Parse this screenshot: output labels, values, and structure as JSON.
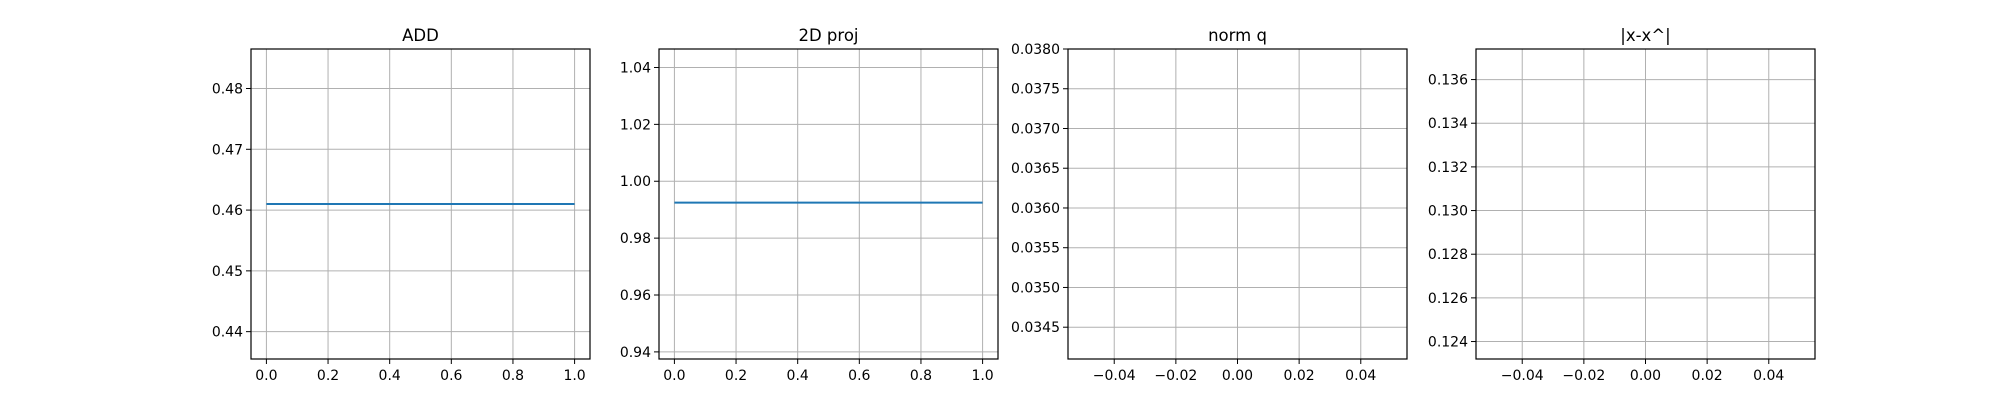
{
  "chart_data": [
    {
      "type": "line",
      "title": "ADD",
      "xlim": [
        -0.05,
        1.05
      ],
      "ylim": [
        0.4355,
        0.4865
      ],
      "x_ticks": [
        0.0,
        0.2,
        0.4,
        0.6,
        0.8,
        1.0
      ],
      "x_tick_labels": [
        "0.0",
        "0.2",
        "0.4",
        "0.6",
        "0.8",
        "1.0"
      ],
      "y_ticks": [
        0.44,
        0.45,
        0.46,
        0.47,
        0.48
      ],
      "y_tick_labels": [
        "0.44",
        "0.45",
        "0.46",
        "0.47",
        "0.48"
      ],
      "grid": true,
      "series": [
        {
          "x": [
            0.0,
            1.0
          ],
          "y": [
            0.461,
            0.461
          ],
          "color": "#1f77b4"
        }
      ]
    },
    {
      "type": "line",
      "title": "2D proj",
      "xlim": [
        -0.05,
        1.05
      ],
      "ylim": [
        0.9375,
        1.0465
      ],
      "x_ticks": [
        0.0,
        0.2,
        0.4,
        0.6,
        0.8,
        1.0
      ],
      "x_tick_labels": [
        "0.0",
        "0.2",
        "0.4",
        "0.6",
        "0.8",
        "1.0"
      ],
      "y_ticks": [
        0.94,
        0.96,
        0.98,
        1.0,
        1.02,
        1.04
      ],
      "y_tick_labels": [
        "0.94",
        "0.96",
        "0.98",
        "1.00",
        "1.02",
        "1.04"
      ],
      "grid": true,
      "series": [
        {
          "x": [
            0.0,
            1.0
          ],
          "y": [
            0.9925,
            0.9925
          ],
          "color": "#1f77b4"
        }
      ]
    },
    {
      "type": "line",
      "title": "norm q",
      "xlim": [
        -0.055,
        0.055
      ],
      "ylim": [
        0.0341,
        0.038
      ],
      "x_ticks": [
        -0.04,
        -0.02,
        0.0,
        0.02,
        0.04
      ],
      "x_tick_labels": [
        "−0.04",
        "−0.02",
        "0.00",
        "0.02",
        "0.04"
      ],
      "y_ticks": [
        0.0345,
        0.035,
        0.0355,
        0.036,
        0.0365,
        0.037,
        0.0375,
        0.038
      ],
      "y_tick_labels": [
        "0.0345",
        "0.0350",
        "0.0355",
        "0.0360",
        "0.0365",
        "0.0370",
        "0.0375",
        "0.0380"
      ],
      "grid": true,
      "series": []
    },
    {
      "type": "line",
      "title": "|x-x^|",
      "xlim": [
        -0.055,
        0.055
      ],
      "ylim": [
        0.1232,
        0.1374
      ],
      "x_ticks": [
        -0.04,
        -0.02,
        0.0,
        0.02,
        0.04
      ],
      "x_tick_labels": [
        "−0.04",
        "−0.02",
        "0.00",
        "0.02",
        "0.04"
      ],
      "y_ticks": [
        0.124,
        0.126,
        0.128,
        0.13,
        0.132,
        0.134,
        0.136
      ],
      "y_tick_labels": [
        "0.124",
        "0.126",
        "0.128",
        "0.130",
        "0.132",
        "0.134",
        "0.136"
      ],
      "grid": true,
      "series": []
    }
  ]
}
